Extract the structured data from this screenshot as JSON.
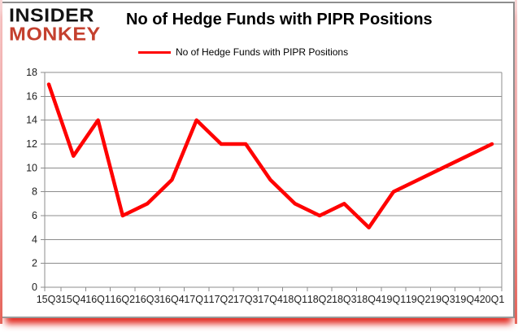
{
  "logo": {
    "line1": "INSIDER",
    "line2": "MONKEY"
  },
  "header": {
    "title": "No of Hedge Funds with PIPR Positions"
  },
  "legend": {
    "label": "No of Hedge Funds with PIPR Positions"
  },
  "colors": {
    "line": "#ff0000",
    "grid": "#8c8c8c",
    "axis_text": "#1d1d1d",
    "logo_red": "#c4402e",
    "frame_pink": "#f0a8a8",
    "bottom_glow_red": "#e1190f"
  },
  "chart_data": {
    "type": "line",
    "title": "No of Hedge Funds with PIPR Positions",
    "categories": [
      "15Q3",
      "15Q4",
      "16Q1",
      "16Q2",
      "16Q3",
      "16Q4",
      "17Q1",
      "17Q2",
      "17Q3",
      "17Q4",
      "18Q1",
      "18Q2",
      "18Q3",
      "18Q4",
      "19Q1",
      "19Q2",
      "19Q3",
      "19Q4",
      "20Q1"
    ],
    "values": [
      17,
      11,
      14,
      6,
      7,
      9,
      14,
      12,
      12,
      9,
      7,
      6,
      7,
      5,
      8,
      9,
      10,
      11,
      12
    ],
    "series": [
      {
        "name": "No of Hedge Funds with PIPR Positions",
        "values": [
          17,
          11,
          14,
          6,
          7,
          9,
          14,
          12,
          12,
          9,
          7,
          6,
          7,
          5,
          8,
          9,
          10,
          11,
          12
        ]
      }
    ],
    "xlabel": "",
    "ylabel": "",
    "ylim": [
      0,
      18
    ],
    "yticks": [
      0,
      2,
      4,
      6,
      8,
      10,
      12,
      14,
      16,
      18
    ],
    "grid": true,
    "legend_position": "top"
  }
}
